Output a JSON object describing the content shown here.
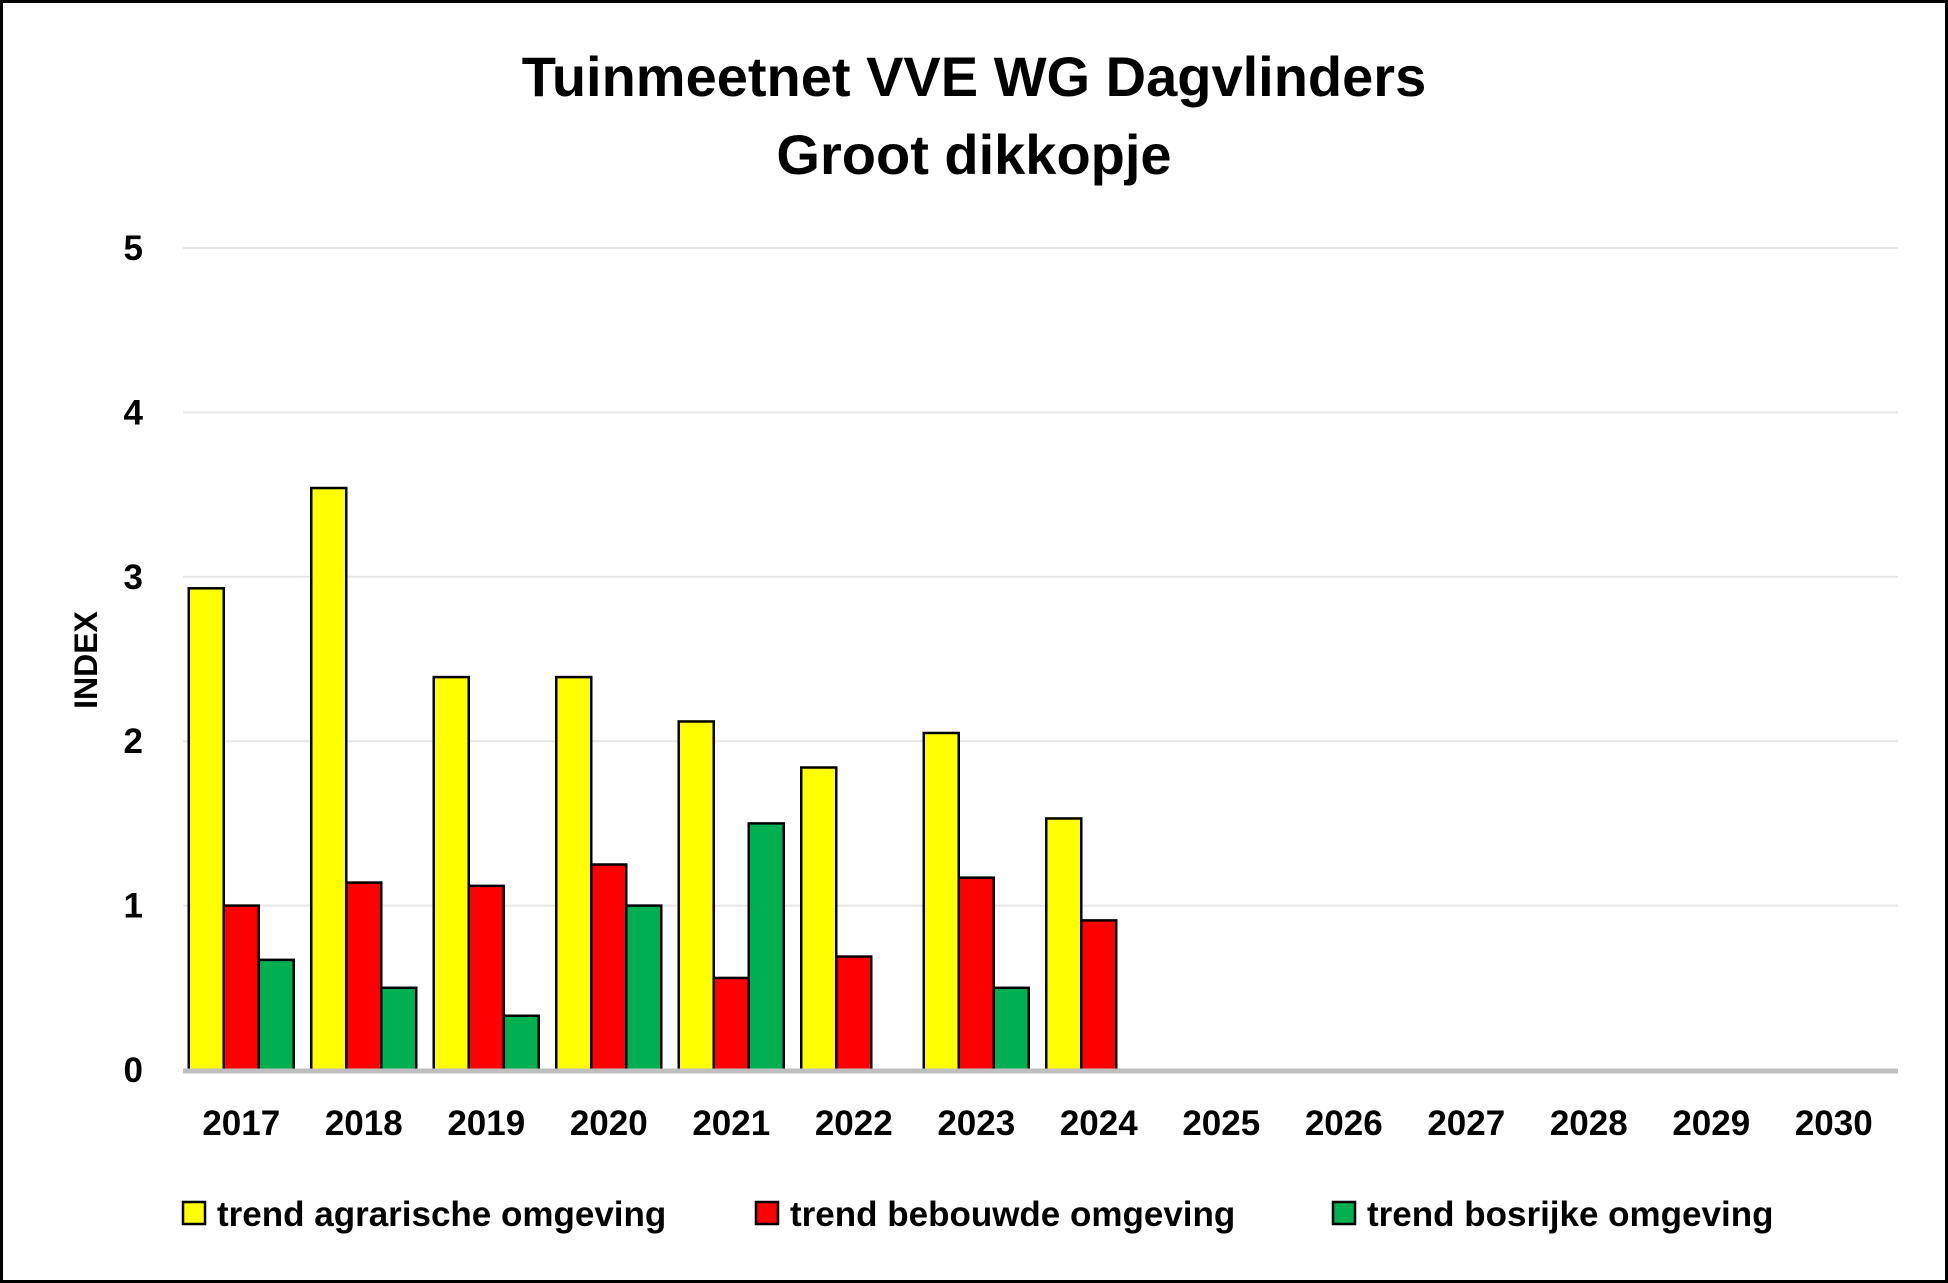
{
  "chart_data": {
    "type": "bar",
    "title": "Tuinmeetnet VVE WG Dagvlinders",
    "subtitle": "Groot dikkopje",
    "ylabel": "INDEX",
    "xlabel": "",
    "ylim": [
      0,
      5
    ],
    "yticks": [
      "0",
      "1",
      "2",
      "3",
      "4",
      "5"
    ],
    "grid": true,
    "legend_position": "bottom",
    "categories": [
      "2017",
      "2018",
      "2019",
      "2020",
      "2021",
      "2022",
      "2023",
      "2024",
      "2025",
      "2026",
      "2027",
      "2028",
      "2029",
      "2030"
    ],
    "series": [
      {
        "name": "trend agrarische omgeving",
        "color": "#FFFF00",
        "values": [
          2.93,
          3.54,
          2.39,
          2.39,
          2.12,
          1.84,
          2.05,
          1.53,
          null,
          null,
          null,
          null,
          null,
          null
        ]
      },
      {
        "name": "trend bebouwde omgeving",
        "color": "#FF0000",
        "values": [
          1.0,
          1.14,
          1.12,
          1.25,
          0.56,
          0.69,
          1.17,
          0.91,
          null,
          null,
          null,
          null,
          null,
          null
        ]
      },
      {
        "name": "trend bosrijke omgeving",
        "color": "#00B050",
        "values": [
          0.67,
          0.5,
          0.33,
          1.0,
          1.5,
          null,
          0.5,
          null,
          null,
          null,
          null,
          null,
          null,
          null
        ]
      }
    ]
  }
}
